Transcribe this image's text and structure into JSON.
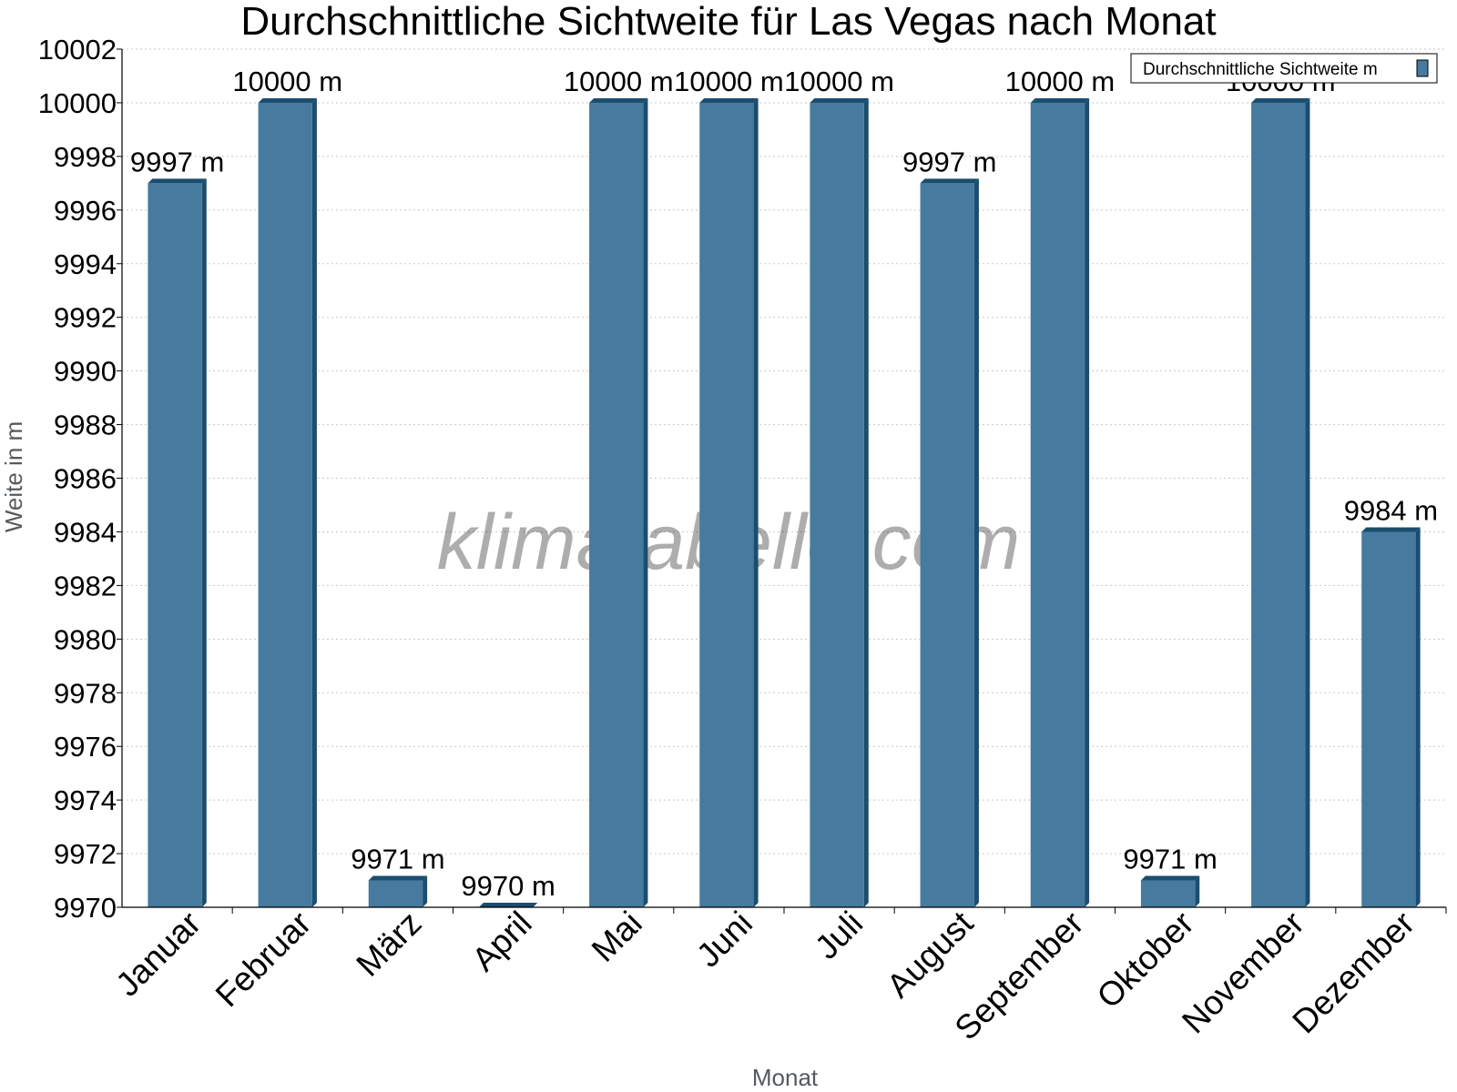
{
  "chart_data": {
    "type": "bar",
    "title": "Durchschnittliche Sichtweite für Las Vegas nach Monat",
    "xlabel": "Monat",
    "ylabel": "Weite in m",
    "ylim": [
      9970,
      10002
    ],
    "ytick_step": 2,
    "grid": true,
    "legend_position": "top-right",
    "unit_suffix": " m",
    "categories": [
      "Januar",
      "Februar",
      "März",
      "April",
      "Mai",
      "Juni",
      "Juli",
      "August",
      "September",
      "Oktober",
      "November",
      "Dezember"
    ],
    "series": [
      {
        "name": "Durchschnittliche Sichtweite m",
        "values": [
          9997,
          10000,
          9971,
          9970,
          10000,
          10000,
          10000,
          9997,
          10000,
          9971,
          10000,
          9984
        ],
        "color": "#467b9f",
        "shade_color": "#1b4d6e"
      }
    ]
  },
  "watermark": "klimatabelle.com"
}
